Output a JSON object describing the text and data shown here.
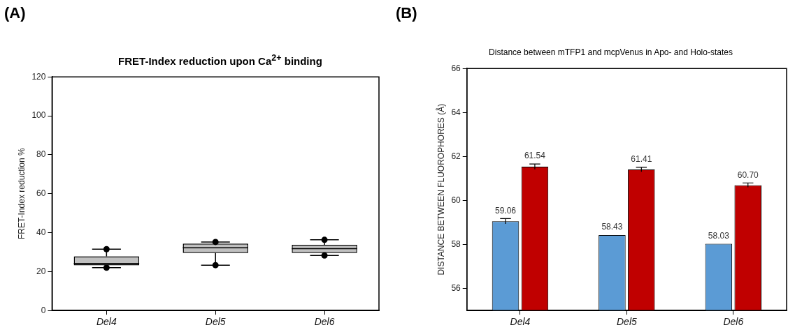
{
  "chart_data": [
    {
      "type": "box",
      "title": "FRET-Index reduction upon Ca$^{2+}$ binding",
      "ylabel": "FRET-Index reduction %",
      "categories": [
        "Del4",
        "Del5",
        "Del6"
      ],
      "color": "#c0c0c0",
      "boxes": [
        {
          "low": 22,
          "q1": 23.2,
          "median": 24.2,
          "q3": 27.8,
          "high": 31.5,
          "outliers": [
            22,
            31.5
          ]
        },
        {
          "low": 23.3,
          "q1": 29.5,
          "median": 32.2,
          "q3": 34.4,
          "high": 35.2,
          "outliers": [
            23.3,
            35.2
          ]
        },
        {
          "low": 28.3,
          "q1": 29.5,
          "median": 31.8,
          "q3": 33.7,
          "high": 36.3,
          "outliers": [
            28.3,
            36.3
          ]
        }
      ],
      "ylim": [
        0,
        120
      ],
      "yticks": [
        0,
        20,
        40,
        60,
        80,
        100,
        120
      ],
      "grid": false,
      "legend": false,
      "annotations": [
        "(A)"
      ]
    },
    {
      "type": "bar",
      "title": "Distance between mTFP1 and mcpVenus in Apo- and Holo-states",
      "ylabel": "DISTANCE BETWEEN FLUOROPHORES (Å)",
      "categories": [
        "Del4",
        "Del5",
        "Del6"
      ],
      "series": [
        {
          "color": "#5b9bd5",
          "values": [
            59.06,
            58.43,
            58.03
          ],
          "errors": [
            0.12,
            null,
            null
          ],
          "value_labels": [
            "59.06",
            "58.43",
            "58.03"
          ]
        },
        {
          "color": "#c00000",
          "values": [
            61.54,
            61.41,
            60.7
          ],
          "errors": [
            0.12,
            0.1,
            0.1
          ],
          "value_labels": [
            "61.54",
            "61.41",
            "60.70"
          ]
        }
      ],
      "ylim": [
        55,
        66
      ],
      "yticks": [
        56,
        58,
        60,
        62,
        64,
        66
      ],
      "grid": false,
      "legend": false,
      "annotations": [
        "(B)"
      ]
    }
  ]
}
